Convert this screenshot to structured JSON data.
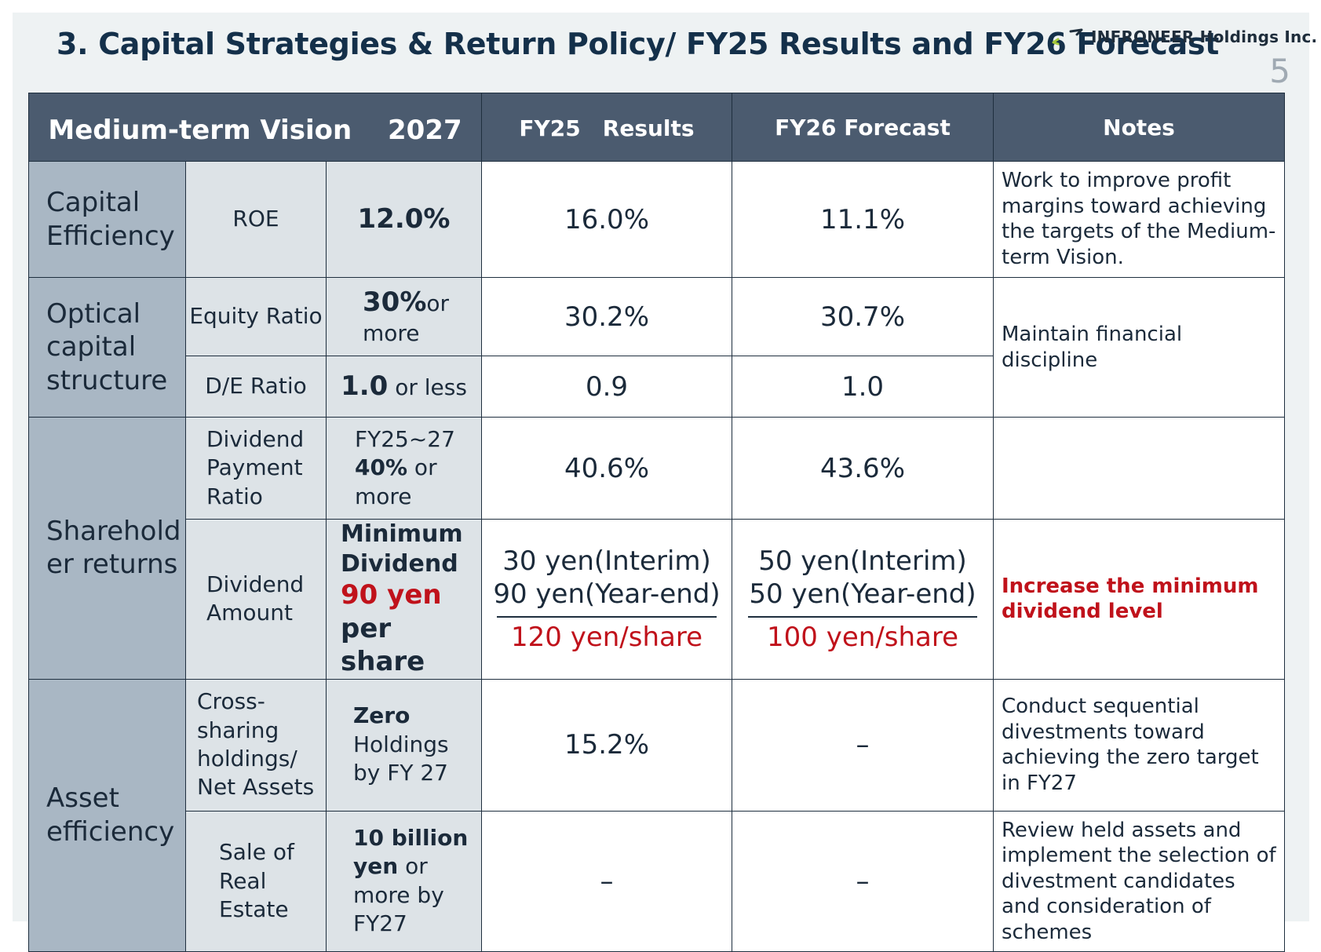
{
  "header": {
    "title": "3. Capital Strategies & Return Policy/ FY25 Results and FY26 Forecast",
    "company": "INFRONEER Holdings Inc.",
    "page_number": "5"
  },
  "columns": {
    "vision": "Medium-term Vision　 2027",
    "fy25": "FY25　Results",
    "fy26": "FY26 Forecast",
    "notes": "Notes"
  },
  "rows": {
    "roe": {
      "category": "Capital Efficiency",
      "metric": "ROE",
      "target": "12.0%",
      "fy25": "16.0%",
      "fy26": "11.1%",
      "note": "Work to improve profit margins toward achieving the targets of the Medium-term Vision."
    },
    "equity": {
      "category": "Optical capital structure",
      "metric": "Equity Ratio",
      "target_bold": "30%",
      "target_rest": "or more",
      "fy25": "30.2%",
      "fy26": "30.7%",
      "note": "Maintain financial discipline"
    },
    "de": {
      "metric": "D/E Ratio",
      "target_bold": "1.0",
      "target_rest": " or less",
      "fy25": "0.9",
      "fy26": "1.0"
    },
    "payout": {
      "category": "Sharehold er returns",
      "metric": "Dividend Payment Ratio",
      "target_line1": "FY25~27",
      "target_bold": "40%",
      "target_rest": " or more",
      "fy25": "40.6%",
      "fy26": "43.6%",
      "note": ""
    },
    "dividend": {
      "metric": "Dividend Amount",
      "target_line1": "Minimum Dividend",
      "target_red": "90 yen",
      "target_line3": "per share",
      "fy25_interim": "30 yen(Interim)",
      "fy25_yearend": "90 yen(Year-end)",
      "fy25_total": "120 yen/share",
      "fy26_interim": "50 yen(Interim)",
      "fy26_yearend": "50 yen(Year-end)",
      "fy26_total": "100 yen/share",
      "note": "Increase the minimum dividend level"
    },
    "cross": {
      "category": "Asset efficiency",
      "metric": "Cross-sharing holdings/ Net Assets",
      "target_bold": "Zero",
      "target_rest": "Holdings by FY 27",
      "fy25": "15.2%",
      "fy26": "–",
      "note": "Conduct sequential divestments toward achieving the zero target in FY27"
    },
    "realestate": {
      "metric": "Sale of Real Estate",
      "target_bold": "10 billion yen",
      "target_rest": " or more by FY27",
      "fy25": "–",
      "fy26": "–",
      "note": "Review held assets and implement the selection of divestment candidates and consideration of schemes"
    }
  },
  "colors": {
    "header_bg": "#4b5b6f",
    "category_bg": "#a9b7c4",
    "metric_bg": "#dde3e7",
    "accent_red": "#c0121b",
    "title": "#14304a"
  }
}
